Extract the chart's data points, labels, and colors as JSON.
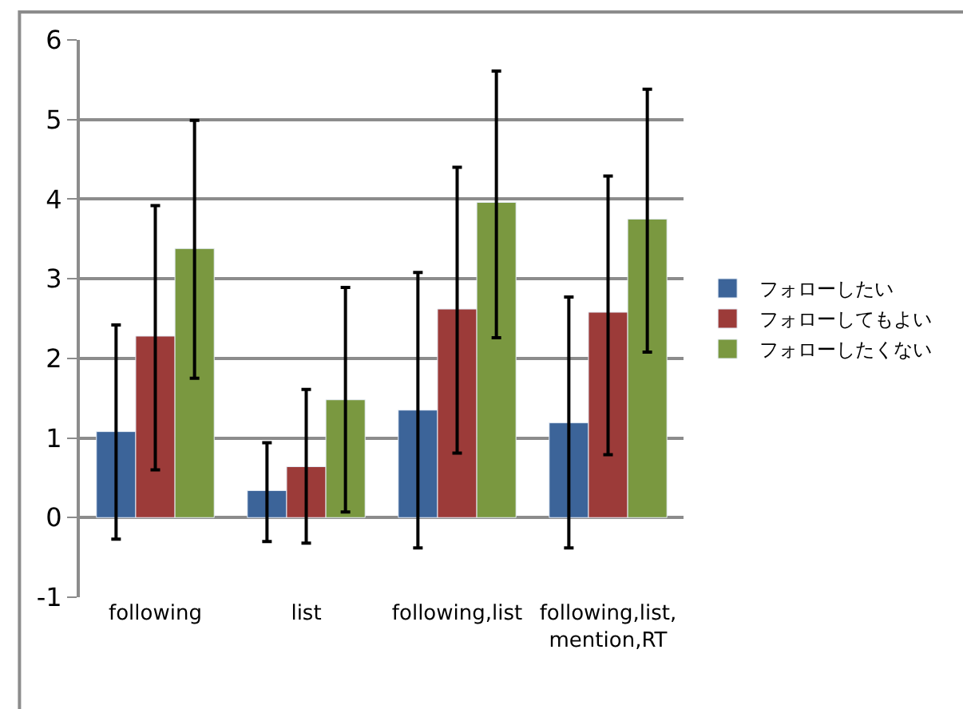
{
  "chart_data": {
    "type": "bar",
    "categories": [
      "following",
      "list",
      "following,list",
      "following,list,\nmention,RT"
    ],
    "series": [
      {
        "name": "フォローしたい",
        "color": "#3c6499",
        "values": [
          1.08,
          0.34,
          1.35,
          1.19
        ],
        "errors": [
          [
            -0.27,
            2.42
          ],
          [
            -0.3,
            0.94
          ],
          [
            -0.38,
            3.08
          ],
          [
            -0.38,
            2.77
          ]
        ]
      },
      {
        "name": "フォローしてもよい",
        "color": "#9c3b39",
        "values": [
          2.28,
          0.64,
          2.62,
          2.58
        ],
        "errors": [
          [
            0.6,
            3.92
          ],
          [
            -0.32,
            1.61
          ],
          [
            0.81,
            4.4
          ],
          [
            0.79,
            4.29
          ]
        ]
      },
      {
        "name": "フォローしたくない",
        "color": "#7a9840",
        "values": [
          3.38,
          1.48,
          3.96,
          3.75
        ],
        "errors": [
          [
            1.75,
            4.99
          ],
          [
            0.07,
            2.89
          ],
          [
            2.26,
            5.61
          ],
          [
            2.08,
            5.38
          ]
        ]
      }
    ],
    "ylim": [
      -1,
      6
    ],
    "yticks": [
      -1,
      0,
      1,
      2,
      3,
      4,
      5,
      6
    ],
    "grid": "y",
    "legend": "right"
  }
}
